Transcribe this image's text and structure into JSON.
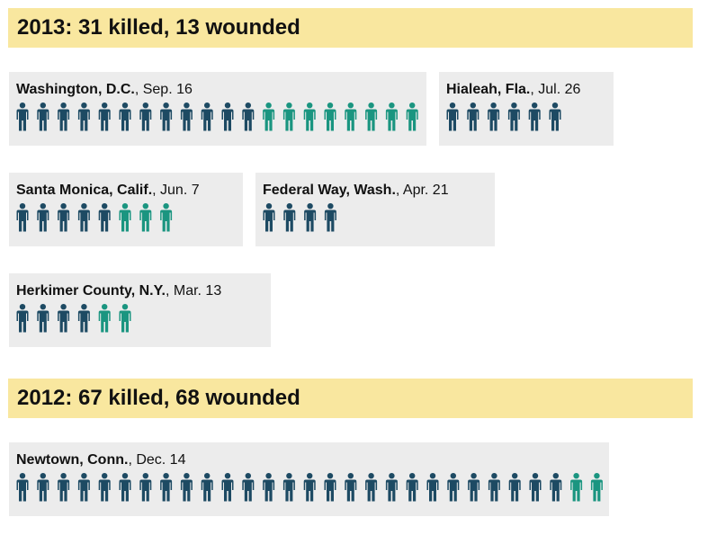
{
  "colors": {
    "killed": "#1d4a63",
    "wounded": "#1a9580",
    "banner": "#f9e79f",
    "card": "#ececec"
  },
  "chart_data": {
    "type": "pictogram",
    "legend_colors": {
      "killed": "#1d4a63",
      "wounded": "#1a9580"
    },
    "years": [
      {
        "heading": "2013: 31 killed, 13 wounded",
        "year": 2013,
        "killed": 31,
        "wounded": 13,
        "events": [
          {
            "place": "Washington, D.C.",
            "date": ", Sep. 16",
            "killed": 12,
            "wounded": 8
          },
          {
            "place": "Hialeah, Fla.",
            "date": ", Jul. 26",
            "killed": 6,
            "wounded": 0
          },
          {
            "place": "Santa Monica, Calif.",
            "date": ", Jun. 7",
            "killed": 5,
            "wounded": 3
          },
          {
            "place": "Federal Way, Wash.",
            "date": ", Apr. 21",
            "killed": 4,
            "wounded": 0
          },
          {
            "place": "Herkimer County, N.Y.",
            "date": ", Mar. 13",
            "killed": 4,
            "wounded": 2
          }
        ]
      },
      {
        "heading": "2012: 67 killed, 68 wounded",
        "year": 2012,
        "killed": 67,
        "wounded": 68,
        "events": [
          {
            "place": "Newtown, Conn.",
            "date": ", Dec. 14",
            "killed": 27,
            "wounded": 2
          }
        ]
      }
    ]
  }
}
